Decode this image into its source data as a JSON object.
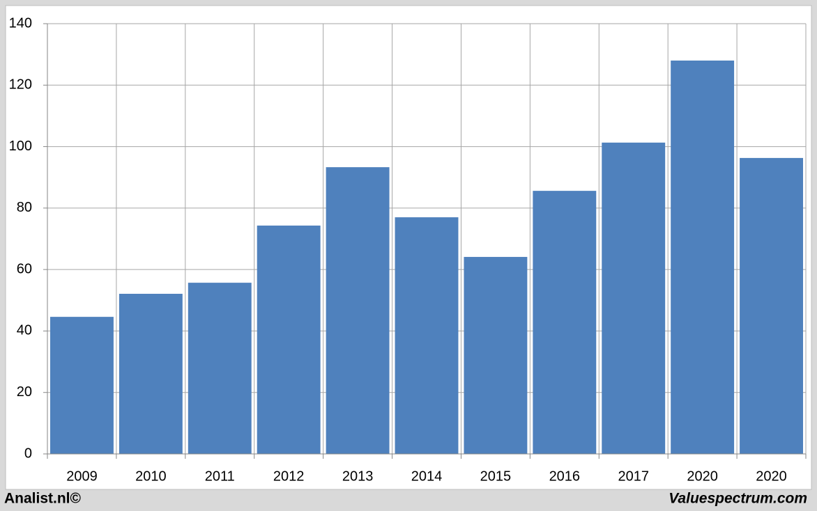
{
  "chart_data": {
    "type": "bar",
    "categories": [
      "2009",
      "2010",
      "2011",
      "2012",
      "2013",
      "2014",
      "2015",
      "2016",
      "2017",
      "2020",
      "2020"
    ],
    "values": [
      44.6,
      52.1,
      55.7,
      74.3,
      93.3,
      77.0,
      64.1,
      85.6,
      101.3,
      128.0,
      96.3
    ],
    "color": "#4f81bd",
    "ylim": [
      0,
      140
    ],
    "yticks": [
      0,
      20,
      40,
      60,
      80,
      100,
      120,
      140
    ],
    "grid": true,
    "footer_left": "Analist.nl©",
    "footer_right": "Valuespectrum.com"
  }
}
